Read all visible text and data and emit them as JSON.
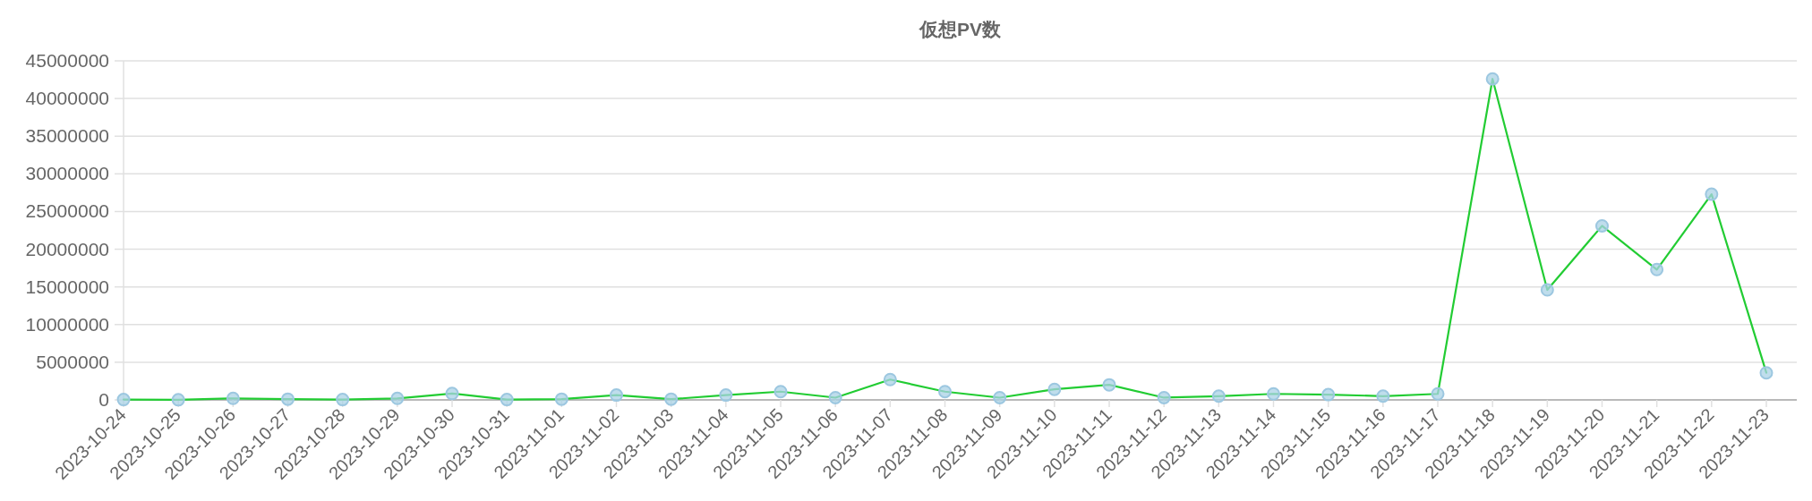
{
  "chart_data": {
    "type": "line",
    "title": "仮想PV数",
    "categories": [
      "2023-10-24",
      "2023-10-25",
      "2023-10-26",
      "2023-10-27",
      "2023-10-28",
      "2023-10-29",
      "2023-10-30",
      "2023-10-31",
      "2023-11-01",
      "2023-11-02",
      "2023-11-03",
      "2023-11-04",
      "2023-11-05",
      "2023-11-06",
      "2023-11-07",
      "2023-11-08",
      "2023-11-09",
      "2023-11-10",
      "2023-11-11",
      "2023-11-12",
      "2023-11-13",
      "2023-11-14",
      "2023-11-15",
      "2023-11-16",
      "2023-11-17",
      "2023-11-18",
      "2023-11-19",
      "2023-11-20",
      "2023-11-21",
      "2023-11-22",
      "2023-11-23"
    ],
    "values": [
      50000,
      20000,
      200000,
      100000,
      50000,
      200000,
      850000,
      50000,
      100000,
      640000,
      100000,
      640000,
      1100000,
      300000,
      2700000,
      1100000,
      300000,
      1400000,
      2000000,
      300000,
      500000,
      800000,
      700000,
      500000,
      800000,
      42600000,
      14600000,
      23100000,
      17300000,
      27300000,
      3600000
    ],
    "color": "#22cc33",
    "ylim": [
      0,
      45000000
    ],
    "yticks": [
      0,
      5000000,
      10000000,
      15000000,
      20000000,
      25000000,
      30000000,
      35000000,
      40000000,
      45000000
    ],
    "grid": "y",
    "marker": "circle",
    "line_style": "solid"
  }
}
